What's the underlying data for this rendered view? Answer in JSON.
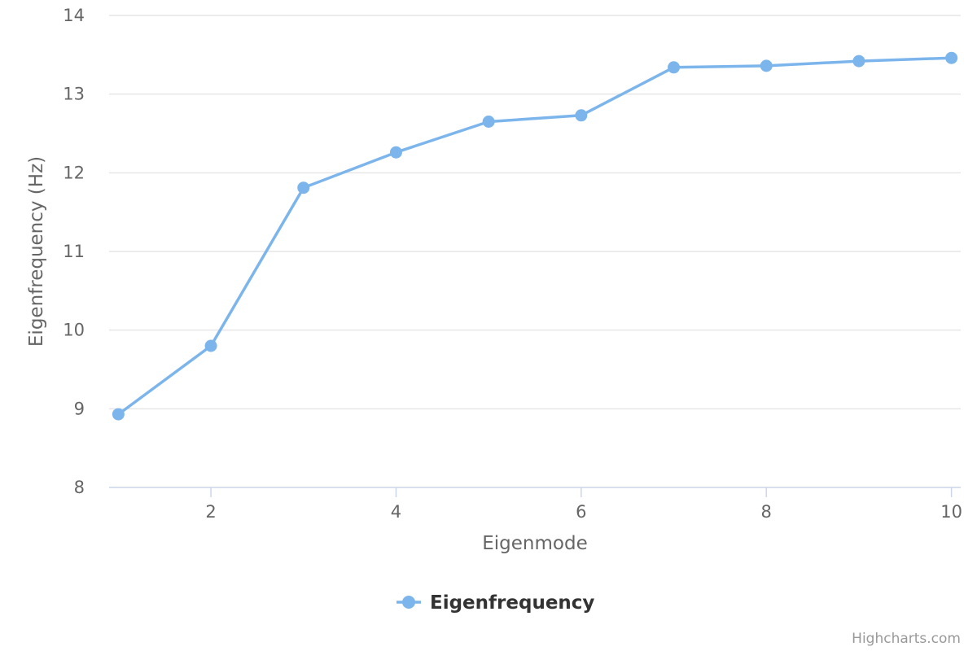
{
  "chart_data": {
    "type": "line",
    "xlabel": "Eigenmode",
    "ylabel": "Eigenfrequency (Hz)",
    "xlim": [
      0.9,
      10.1
    ],
    "ylim": [
      8,
      14
    ],
    "x_ticks": [
      2,
      4,
      6,
      8,
      10
    ],
    "y_ticks": [
      8,
      9,
      10,
      11,
      12,
      13,
      14
    ],
    "grid": "horizontal",
    "legend_position": "bottom-center",
    "series": [
      {
        "name": "Eigenfrequency",
        "color": "#7cb5ec",
        "x": [
          1,
          2,
          3,
          4,
          5,
          6,
          7,
          8,
          9,
          10
        ],
        "values": [
          8.93,
          9.8,
          11.81,
          12.26,
          12.65,
          12.73,
          13.34,
          13.36,
          13.42,
          13.46
        ]
      }
    ]
  },
  "credits": "Highcharts.com"
}
